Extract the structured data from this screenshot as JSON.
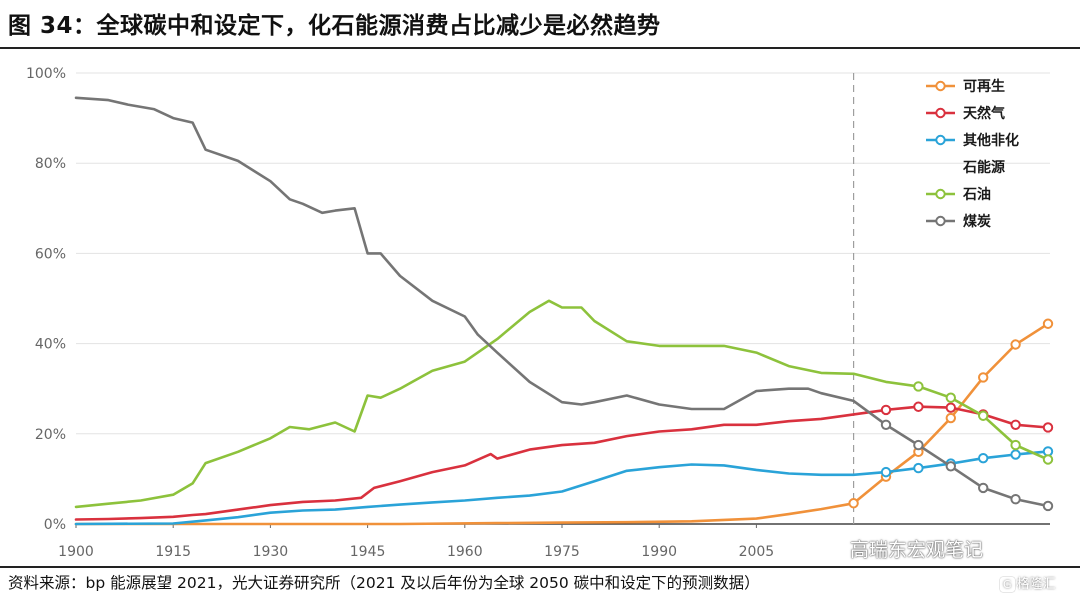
{
  "title": "图 34：全球碳中和设定下，化石能源消费占比减少是必然趋势",
  "source": "资料来源：bp 能源展望 2021，光大证券研究所（2021 及以后年份为全球 2050 碳中和设定下的预测数据）",
  "watermark": "高瑞东宏观笔记",
  "watermark2": "格隆汇",
  "watermark2_badge": "G",
  "chart_data": {
    "type": "line",
    "xlim": [
      1900,
      2050
    ],
    "ylim": [
      0,
      100
    ],
    "x_ticks": [
      1900,
      1915,
      1930,
      1945,
      1960,
      1975,
      1990,
      2005
    ],
    "x_tick_labels": [
      "1900",
      "1915",
      "1930",
      "1945",
      "1960",
      "1975",
      "1990",
      "2005"
    ],
    "y_ticks": [
      0,
      20,
      40,
      60,
      80,
      100
    ],
    "y_tick_labels": [
      "0%",
      "20%",
      "40%",
      "60%",
      "80%",
      "100%"
    ],
    "forecast_divider_x": 2020,
    "legend_position": "top-right",
    "series": [
      {
        "name": "可再生",
        "color": "#f0913a",
        "marker_start": 2020,
        "points": [
          [
            1900,
            0
          ],
          [
            1950,
            0
          ],
          [
            1965,
            0.2
          ],
          [
            1975,
            0.3
          ],
          [
            1985,
            0.4
          ],
          [
            1995,
            0.6
          ],
          [
            2005,
            1.2
          ],
          [
            2010,
            2.2
          ],
          [
            2015,
            3.3
          ],
          [
            2020,
            4.6
          ],
          [
            2025,
            10.5
          ],
          [
            2030,
            16
          ],
          [
            2035,
            23.5
          ],
          [
            2040,
            32.5
          ],
          [
            2045,
            39.8
          ],
          [
            2050,
            44.4
          ]
        ]
      },
      {
        "name": "天然气",
        "color": "#d9313e",
        "marker_start": 2025,
        "points": [
          [
            1900,
            1
          ],
          [
            1905,
            1.1
          ],
          [
            1910,
            1.3
          ],
          [
            1915,
            1.6
          ],
          [
            1918,
            2
          ],
          [
            1920,
            2.2
          ],
          [
            1925,
            3.2
          ],
          [
            1930,
            4.2
          ],
          [
            1935,
            4.9
          ],
          [
            1940,
            5.2
          ],
          [
            1944,
            5.8
          ],
          [
            1946,
            8
          ],
          [
            1950,
            9.5
          ],
          [
            1955,
            11.5
          ],
          [
            1960,
            13
          ],
          [
            1964,
            15.5
          ],
          [
            1965,
            14.5
          ],
          [
            1970,
            16.5
          ],
          [
            1975,
            17.5
          ],
          [
            1980,
            18
          ],
          [
            1985,
            19.5
          ],
          [
            1990,
            20.5
          ],
          [
            1995,
            21
          ],
          [
            2000,
            22
          ],
          [
            2005,
            22
          ],
          [
            2010,
            22.8
          ],
          [
            2015,
            23.3
          ],
          [
            2020,
            24.3
          ],
          [
            2025,
            25.3
          ],
          [
            2030,
            26
          ],
          [
            2035,
            25.8
          ],
          [
            2040,
            24.3
          ],
          [
            2045,
            22
          ],
          [
            2050,
            21.4
          ]
        ]
      },
      {
        "name": "其他非化石能源",
        "color": "#2aa3d8",
        "marker_start": 2025,
        "points": [
          [
            1900,
            0
          ],
          [
            1915,
            0.1
          ],
          [
            1920,
            0.8
          ],
          [
            1925,
            1.5
          ],
          [
            1930,
            2.5
          ],
          [
            1935,
            3
          ],
          [
            1940,
            3.2
          ],
          [
            1945,
            3.8
          ],
          [
            1950,
            4.3
          ],
          [
            1955,
            4.8
          ],
          [
            1960,
            5.2
          ],
          [
            1965,
            5.8
          ],
          [
            1970,
            6.3
          ],
          [
            1975,
            7.2
          ],
          [
            1980,
            9.5
          ],
          [
            1985,
            11.8
          ],
          [
            1990,
            12.6
          ],
          [
            1995,
            13.2
          ],
          [
            2000,
            13
          ],
          [
            2005,
            12
          ],
          [
            2010,
            11.2
          ],
          [
            2015,
            10.9
          ],
          [
            2020,
            10.9
          ],
          [
            2025,
            11.5
          ],
          [
            2030,
            12.4
          ],
          [
            2035,
            13.4
          ],
          [
            2040,
            14.6
          ],
          [
            2045,
            15.4
          ],
          [
            2050,
            16.1
          ]
        ]
      },
      {
        "name": "石油",
        "color": "#8dc23c",
        "marker_start": 2030,
        "points": [
          [
            1900,
            3.8
          ],
          [
            1905,
            4.5
          ],
          [
            1910,
            5.2
          ],
          [
            1915,
            6.5
          ],
          [
            1918,
            9
          ],
          [
            1920,
            13.5
          ],
          [
            1925,
            16
          ],
          [
            1930,
            19
          ],
          [
            1933,
            21.5
          ],
          [
            1936,
            21
          ],
          [
            1940,
            22.5
          ],
          [
            1943,
            20.5
          ],
          [
            1945,
            28.5
          ],
          [
            1947,
            28
          ],
          [
            1950,
            30
          ],
          [
            1955,
            34
          ],
          [
            1960,
            36
          ],
          [
            1963,
            39
          ],
          [
            1965,
            41
          ],
          [
            1970,
            47
          ],
          [
            1973,
            49.5
          ],
          [
            1975,
            48
          ],
          [
            1978,
            48
          ],
          [
            1980,
            45
          ],
          [
            1985,
            40.5
          ],
          [
            1990,
            39.5
          ],
          [
            1995,
            39.5
          ],
          [
            2000,
            39.5
          ],
          [
            2005,
            38
          ],
          [
            2010,
            35
          ],
          [
            2015,
            33.5
          ],
          [
            2020,
            33.3
          ],
          [
            2025,
            31.5
          ],
          [
            2030,
            30.5
          ],
          [
            2035,
            28
          ],
          [
            2040,
            24
          ],
          [
            2045,
            17.5
          ],
          [
            2050,
            14.3
          ]
        ]
      },
      {
        "name": "煤炭",
        "color": "#757575",
        "marker_start": 2025,
        "points": [
          [
            1900,
            94.5
          ],
          [
            1905,
            94
          ],
          [
            1908,
            93
          ],
          [
            1912,
            92
          ],
          [
            1915,
            90
          ],
          [
            1918,
            89
          ],
          [
            1920,
            83
          ],
          [
            1925,
            80.5
          ],
          [
            1930,
            76
          ],
          [
            1933,
            72
          ],
          [
            1935,
            71
          ],
          [
            1938,
            69
          ],
          [
            1940,
            69.5
          ],
          [
            1943,
            70
          ],
          [
            1945,
            60
          ],
          [
            1947,
            60
          ],
          [
            1950,
            55
          ],
          [
            1955,
            49.5
          ],
          [
            1960,
            46
          ],
          [
            1962,
            42
          ],
          [
            1965,
            38
          ],
          [
            1970,
            31.5
          ],
          [
            1975,
            27
          ],
          [
            1978,
            26.5
          ],
          [
            1980,
            27
          ],
          [
            1985,
            28.5
          ],
          [
            1990,
            26.5
          ],
          [
            1995,
            25.5
          ],
          [
            2000,
            25.5
          ],
          [
            2005,
            29.5
          ],
          [
            2010,
            30
          ],
          [
            2013,
            30
          ],
          [
            2015,
            29
          ],
          [
            2020,
            27.3
          ],
          [
            2025,
            22
          ],
          [
            2030,
            17.5
          ],
          [
            2035,
            12.8
          ],
          [
            2040,
            8
          ],
          [
            2045,
            5.5
          ],
          [
            2050,
            4
          ]
        ]
      }
    ],
    "legend": [
      {
        "label": "可再生",
        "color": "#f0913a"
      },
      {
        "label": "天然气",
        "color": "#d9313e"
      },
      {
        "label": "其他非化",
        "label2": "石能源",
        "color": "#2aa3d8"
      },
      {
        "label": "石油",
        "color": "#8dc23c"
      },
      {
        "label": "煤炭",
        "color": "#757575"
      }
    ]
  }
}
